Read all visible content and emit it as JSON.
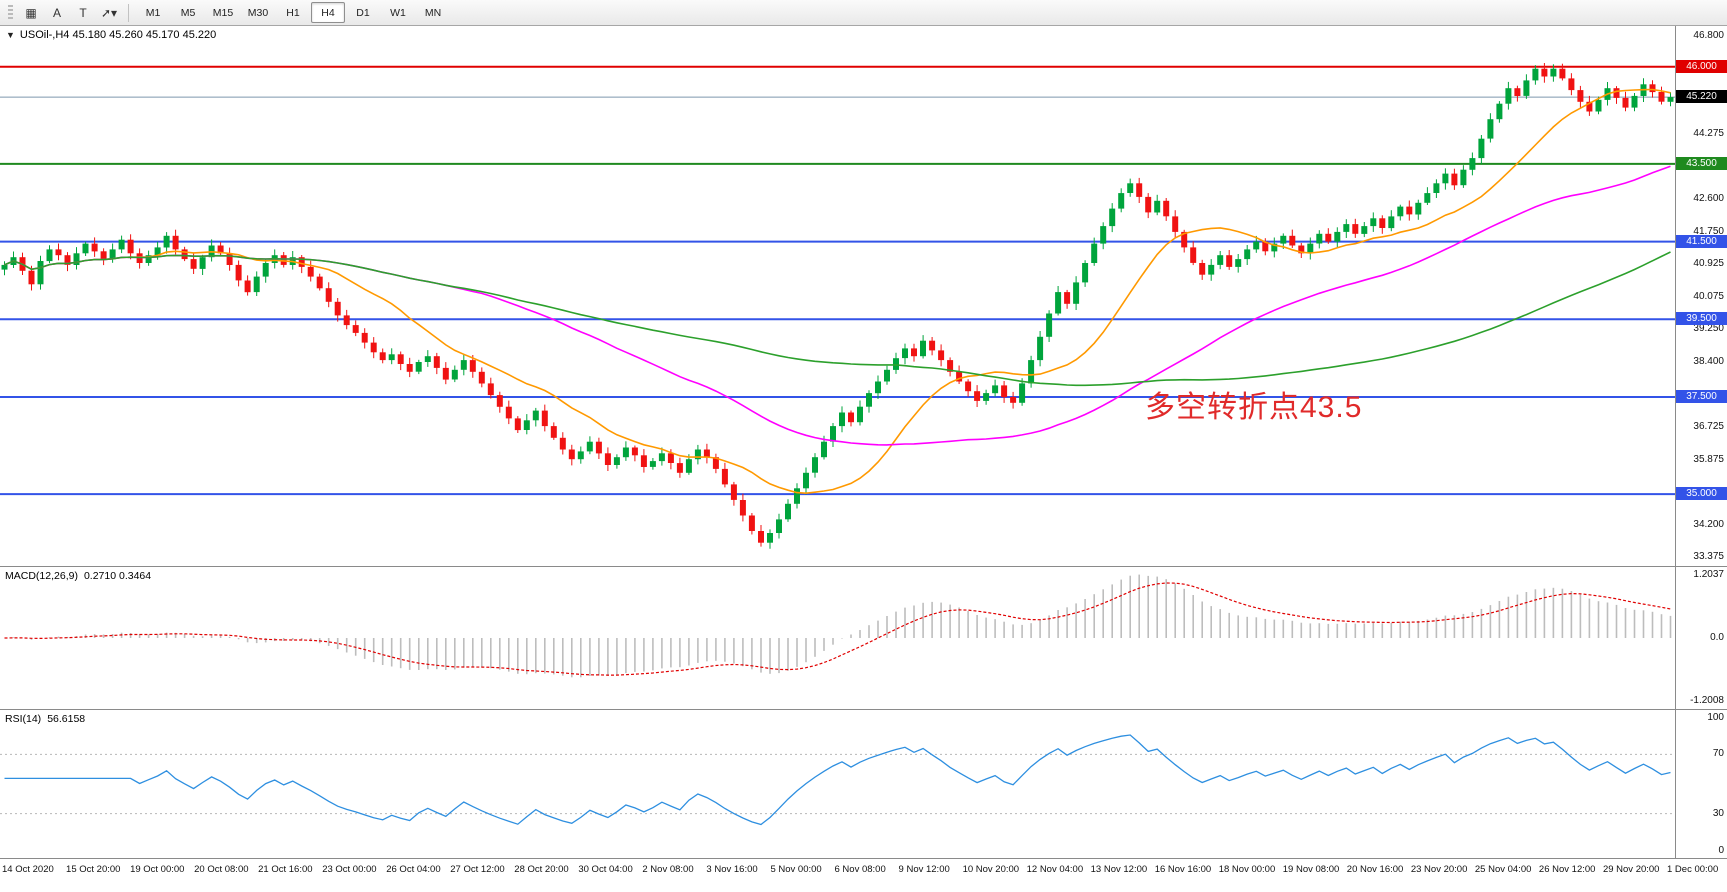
{
  "toolbar": {
    "tools": [
      {
        "name": "charts-grid-icon",
        "glyph": "▦"
      },
      {
        "name": "cursor-a-tool-icon",
        "glyph": "A"
      },
      {
        "name": "text-tool-icon",
        "glyph": "T"
      },
      {
        "name": "arrow-tools-dropdown-icon",
        "glyph": "➚▾"
      }
    ],
    "timeframes": [
      "M1",
      "M5",
      "M15",
      "M30",
      "H1",
      "H4",
      "D1",
      "W1",
      "MN"
    ],
    "active_timeframe": "H4"
  },
  "main_chart": {
    "toggle_glyph": "▼",
    "symbol_info": "USOil-,H4 45.180 45.260 45.170 45.220",
    "annotation": {
      "text": "多空转折点43.5",
      "color": "#e02a2a"
    },
    "hlines": [
      {
        "price": 46.0,
        "color": "#e00000",
        "width": 2
      },
      {
        "price": 45.22,
        "color": "#7e97ad",
        "width": 1
      },
      {
        "price": 43.5,
        "color": "#1f8a1f",
        "width": 2
      },
      {
        "price": 41.5,
        "color": "#3353e8",
        "width": 2
      },
      {
        "price": 39.5,
        "color": "#3353e8",
        "width": 2
      },
      {
        "price": 37.5,
        "color": "#3353e8",
        "width": 2
      },
      {
        "price": 35.0,
        "color": "#3353e8",
        "width": 2
      }
    ],
    "price_axis": {
      "plain_labels": [
        46.8,
        44.275,
        42.6,
        41.75,
        40.925,
        40.075,
        39.25,
        38.4,
        36.725,
        35.875,
        34.2,
        33.375
      ],
      "badges": [
        {
          "price": 46.0,
          "label": "46.000",
          "bg": "#e00000"
        },
        {
          "price": 45.22,
          "label": "45.220",
          "bg": "#000000"
        },
        {
          "price": 43.5,
          "label": "43.500",
          "bg": "#1f8a1f"
        },
        {
          "price": 41.5,
          "label": "41.500",
          "bg": "#3353e8"
        },
        {
          "price": 39.5,
          "label": "39.500",
          "bg": "#3353e8"
        },
        {
          "price": 37.5,
          "label": "37.500",
          "bg": "#3353e8"
        },
        {
          "price": 35.0,
          "label": "35.000",
          "bg": "#3353e8"
        }
      ]
    }
  },
  "chart_data": {
    "type": "candlestick",
    "title": "USOil- H4",
    "price_range": [
      33.15,
      47.05
    ],
    "candle_colors": {
      "up": "#00a43c",
      "down": "#f01212"
    },
    "closes": [
      40.9,
      41.1,
      40.75,
      40.4,
      41.0,
      41.3,
      41.15,
      40.9,
      41.2,
      41.45,
      41.25,
      41.05,
      41.3,
      41.55,
      41.2,
      40.95,
      41.15,
      41.35,
      41.65,
      41.3,
      41.05,
      40.8,
      41.1,
      41.4,
      41.2,
      40.9,
      40.5,
      40.2,
      40.6,
      40.95,
      41.15,
      40.9,
      41.1,
      40.85,
      40.6,
      40.3,
      39.95,
      39.6,
      39.35,
      39.15,
      38.9,
      38.65,
      38.45,
      38.6,
      38.35,
      38.15,
      38.4,
      38.55,
      38.25,
      37.95,
      38.2,
      38.45,
      38.15,
      37.85,
      37.55,
      37.25,
      36.95,
      36.65,
      36.9,
      37.15,
      36.75,
      36.45,
      36.15,
      35.9,
      36.1,
      36.35,
      36.05,
      35.75,
      35.95,
      36.2,
      36.0,
      35.7,
      35.85,
      36.05,
      35.8,
      35.55,
      35.9,
      36.15,
      35.95,
      35.65,
      35.25,
      34.85,
      34.45,
      34.05,
      33.75,
      34.0,
      34.35,
      34.75,
      35.15,
      35.55,
      35.95,
      36.35,
      36.75,
      37.1,
      36.85,
      37.25,
      37.6,
      37.9,
      38.2,
      38.5,
      38.75,
      38.55,
      38.95,
      38.7,
      38.45,
      38.15,
      37.9,
      37.65,
      37.4,
      37.6,
      37.8,
      37.5,
      37.35,
      37.85,
      38.45,
      39.05,
      39.65,
      40.2,
      39.9,
      40.45,
      40.95,
      41.45,
      41.9,
      42.35,
      42.75,
      43.0,
      42.65,
      42.25,
      42.55,
      42.15,
      41.75,
      41.35,
      40.95,
      40.65,
      40.9,
      41.15,
      40.85,
      41.05,
      41.3,
      41.5,
      41.25,
      41.45,
      41.65,
      41.4,
      41.2,
      41.45,
      41.7,
      41.5,
      41.75,
      41.95,
      41.7,
      41.9,
      42.1,
      41.85,
      42.15,
      42.4,
      42.2,
      42.5,
      42.75,
      43.0,
      43.25,
      42.95,
      43.35,
      43.65,
      44.15,
      44.65,
      45.05,
      45.45,
      45.25,
      45.65,
      45.95,
      45.75,
      45.95,
      45.7,
      45.4,
      45.1,
      44.85,
      45.15,
      45.45,
      45.2,
      44.95,
      45.25,
      45.55,
      45.35,
      45.1,
      45.22
    ],
    "moving_averages": [
      {
        "name": "MA-fast",
        "period": 15,
        "color": "#ff9900"
      },
      {
        "name": "MA-mid",
        "period": 50,
        "color": "#ff00ff"
      },
      {
        "name": "MA-slow",
        "period": 100,
        "color": "#2ca02c"
      }
    ],
    "indicators": {
      "macd": {
        "label": "MACD(12,26,9)",
        "values_text": "0.2710 0.3464",
        "params": [
          12,
          26,
          9
        ],
        "axis": [
          "1.2037",
          "0.0",
          "-1.2008"
        ],
        "histogram_color": "#bdbdbd",
        "signal_color": "#e00000"
      },
      "rsi": {
        "label": "RSI(14)",
        "value_text": "56.6158",
        "period": 14,
        "levels": [
          30,
          70
        ],
        "axis": [
          "100",
          "70",
          "30",
          "0"
        ],
        "line_color": "#2e8fe0"
      }
    },
    "x_labels": [
      "14 Oct 2020",
      "15 Oct 20:00",
      "19 Oct 00:00",
      "20 Oct 08:00",
      "21 Oct 16:00",
      "23 Oct 00:00",
      "26 Oct 04:00",
      "27 Oct 12:00",
      "28 Oct 20:00",
      "30 Oct 04:00",
      "2 Nov 08:00",
      "3 Nov 16:00",
      "5 Nov 00:00",
      "6 Nov 08:00",
      "9 Nov 12:00",
      "10 Nov 20:00",
      "12 Nov 04:00",
      "13 Nov 12:00",
      "16 Nov 16:00",
      "18 Nov 00:00",
      "19 Nov 08:00",
      "20 Nov 16:00",
      "23 Nov 20:00",
      "25 Nov 04:00",
      "26 Nov 12:00",
      "29 Nov 20:00",
      "1 Dec 00:00"
    ]
  }
}
